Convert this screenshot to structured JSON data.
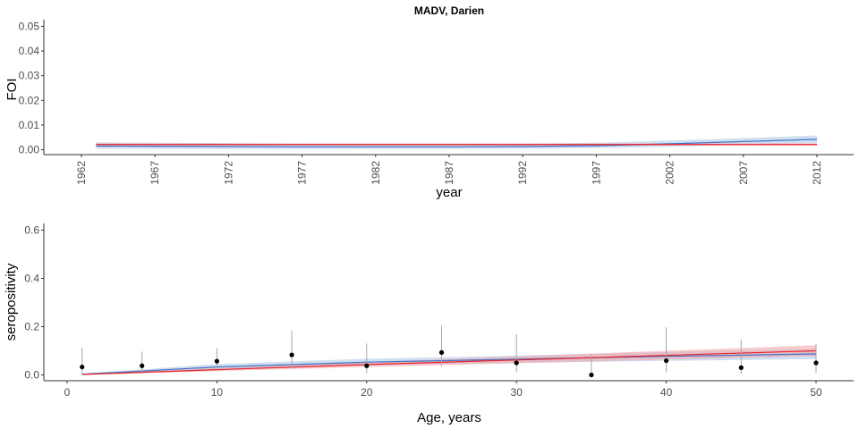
{
  "chart_data": [
    {
      "type": "line",
      "title": "MADV, Darien",
      "xlabel": "year",
      "ylabel": "FOI",
      "xlim": [
        1962,
        2012
      ],
      "ylim": [
        0,
        0.05
      ],
      "xticks": [
        "1962",
        "1967",
        "1972",
        "1977",
        "1982",
        "1987",
        "1992",
        "1997",
        "2002",
        "2007",
        "2012"
      ],
      "yticks": [
        "0.00",
        "0.01",
        "0.02",
        "0.03",
        "0.04",
        "0.05"
      ],
      "series": [
        {
          "color": "#4472c4",
          "band_color": "#a9c4e6",
          "x": [
            1963,
            1967,
            1972,
            1977,
            1982,
            1987,
            1992,
            1997,
            2002,
            2007,
            2012
          ],
          "y": [
            0.0015,
            0.0014,
            0.0013,
            0.0012,
            0.0012,
            0.0012,
            0.0013,
            0.0016,
            0.0024,
            0.0033,
            0.0042
          ],
          "lower": [
            0.0004,
            0.0004,
            0.0003,
            0.0003,
            0.0003,
            0.0003,
            0.0004,
            0.0006,
            0.0012,
            0.002,
            0.0027
          ],
          "upper": [
            0.003,
            0.0028,
            0.0026,
            0.0024,
            0.0023,
            0.0023,
            0.0024,
            0.0028,
            0.0037,
            0.0047,
            0.0058
          ]
        },
        {
          "color": "#e8242c",
          "band_color": "#f2a0a4",
          "x": [
            1963,
            1967,
            1972,
            1977,
            1982,
            1987,
            1992,
            1997,
            2002,
            2007,
            2012
          ],
          "y": [
            0.0021,
            0.0021,
            0.0021,
            0.0021,
            0.0021,
            0.0021,
            0.0021,
            0.0021,
            0.0021,
            0.0021,
            0.0021
          ],
          "lower": [
            0.0016,
            0.0016,
            0.0016,
            0.0016,
            0.0016,
            0.0016,
            0.0016,
            0.0016,
            0.0016,
            0.0016,
            0.0016
          ],
          "upper": [
            0.0026,
            0.0026,
            0.0026,
            0.0026,
            0.0026,
            0.0026,
            0.0026,
            0.0026,
            0.0026,
            0.0026,
            0.0026
          ]
        }
      ]
    },
    {
      "type": "line",
      "title": "",
      "xlabel": "Age, years",
      "ylabel": "seropositivity",
      "xlim": [
        0,
        50
      ],
      "ylim": [
        0,
        0.6
      ],
      "xticks": [
        "0",
        "10",
        "20",
        "30",
        "40",
        "50"
      ],
      "yticks": [
        "0.0",
        "0.2",
        "0.4",
        "0.6"
      ],
      "series": [
        {
          "color": "#4472c4",
          "band_color": "#a9c4e6",
          "x": [
            1,
            10,
            20,
            30,
            40,
            50
          ],
          "y": [
            0.003,
            0.033,
            0.053,
            0.065,
            0.077,
            0.087
          ],
          "lower": [
            0.0,
            0.022,
            0.04,
            0.05,
            0.058,
            0.066
          ],
          "upper": [
            0.006,
            0.045,
            0.067,
            0.08,
            0.095,
            0.108
          ]
        },
        {
          "color": "#e8242c",
          "band_color": "#f2a0a4",
          "x": [
            1,
            10,
            20,
            30,
            40,
            50
          ],
          "y": [
            0.002,
            0.022,
            0.043,
            0.062,
            0.081,
            0.1
          ],
          "lower": [
            0.0,
            0.016,
            0.033,
            0.048,
            0.064,
            0.078
          ],
          "upper": [
            0.004,
            0.028,
            0.053,
            0.077,
            0.1,
            0.123
          ]
        }
      ],
      "points": {
        "color": "#000000",
        "errorbar_color": "#a6a6a6",
        "x": [
          1,
          5,
          10,
          15,
          20,
          25,
          30,
          35,
          40,
          45,
          50
        ],
        "y": [
          0.033,
          0.038,
          0.057,
          0.083,
          0.038,
          0.093,
          0.05,
          0.0,
          0.059,
          0.03,
          0.05
        ],
        "lower": [
          0.004,
          0.012,
          0.017,
          0.03,
          0.008,
          0.035,
          0.01,
          0.0,
          0.01,
          0.005,
          0.009
        ],
        "upper": [
          0.113,
          0.097,
          0.112,
          0.184,
          0.13,
          0.203,
          0.168,
          0.085,
          0.197,
          0.147,
          0.128
        ]
      }
    }
  ]
}
